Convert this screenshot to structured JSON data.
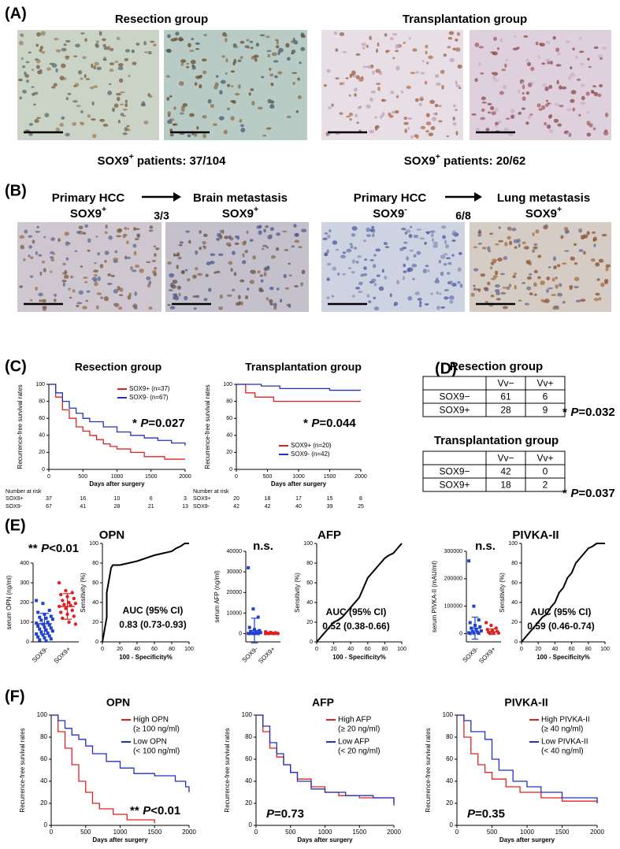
{
  "panel_labels": [
    "(A)",
    "(B)",
    "(C)",
    "(D)",
    "(E)",
    "(F)"
  ],
  "panel_A": {
    "groups": [
      {
        "title": "Resection group",
        "caption": {
          "pre": "SOX9",
          "sup": "+",
          "post": " patients: 37/104"
        }
      },
      {
        "title": "Transplantation group",
        "caption": {
          "pre": "SOX9",
          "sup": "+",
          "post": " patients: 20/62"
        }
      }
    ]
  },
  "panel_B": {
    "transitions": [
      {
        "from": {
          "name": "Primary HCC",
          "pre": "SOX9",
          "sup": "+"
        },
        "ratio": "3/3",
        "to": {
          "name": "Brain metastasis",
          "pre": "SOX9",
          "sup": "+"
        }
      },
      {
        "from": {
          "name": "Primary HCC",
          "pre": "SOX9",
          "sup": "-"
        },
        "ratio": "6/8",
        "to": {
          "name": "Lung metastasis",
          "pre": "SOX9",
          "sup": "+"
        }
      }
    ]
  },
  "tables": [
    {
      "title": "Resection group",
      "header": [
        "Vv−",
        "Vv+"
      ],
      "rows": [
        [
          "SOX9−",
          61,
          6
        ],
        [
          "SOX9+",
          28,
          9
        ]
      ],
      "annotation": {
        "stars": "*",
        "p": "P",
        "rest": "=0.032"
      }
    },
    {
      "title": "Transplantation group",
      "header": [
        "Vv−",
        "Vv+"
      ],
      "rows": [
        [
          "SOX9−",
          42,
          0
        ],
        [
          "SOX9+",
          18,
          2
        ]
      ],
      "annotation": {
        "stars": "*",
        "p": "P",
        "rest": "=0.037"
      }
    }
  ],
  "chart_data": [
    {
      "type": "survival",
      "title": "Resection group",
      "x_label": "Days after surgery",
      "y_label": "Recurrence-free survival rates",
      "xlim": [
        0,
        2000
      ],
      "xticks": [
        0,
        500,
        1000,
        1500,
        2000
      ],
      "ylim": [
        0,
        100
      ],
      "yticks": [
        0,
        20,
        40,
        60,
        80,
        100
      ],
      "legend": "upper right",
      "series": [
        {
          "name": "SOX9+ (n=37)",
          "color": "#e02020",
          "x": [
            0,
            100,
            200,
            300,
            400,
            500,
            600,
            700,
            800,
            900,
            1000,
            1200,
            1400,
            1700,
            2000
          ],
          "values": [
            100,
            85,
            70,
            60,
            50,
            45,
            40,
            35,
            30,
            27,
            24,
            20,
            15,
            12,
            12
          ]
        },
        {
          "name": "SOX9- (n=67)",
          "color": "#2030c0",
          "x": [
            0,
            100,
            200,
            300,
            400,
            500,
            600,
            800,
            1000,
            1200,
            1400,
            1600,
            1800,
            2000
          ],
          "values": [
            100,
            90,
            80,
            72,
            66,
            60,
            56,
            50,
            44,
            40,
            37,
            34,
            31,
            28
          ]
        }
      ],
      "annotation": {
        "stars": "*",
        "p": "P",
        "rest": "=0.027"
      },
      "risk_table": {
        "title": "Number at risk",
        "rows": [
          {
            "name": "SOX9+",
            "values": [
              37,
              16,
              10,
              6,
              3
            ]
          },
          {
            "name": "SOX9-",
            "values": [
              67,
              41,
              28,
              21,
              13
            ]
          }
        ]
      }
    },
    {
      "type": "survival",
      "title": "Transplantation group",
      "x_label": "Days after surgery",
      "y_label": "Recurrence-free survival rates",
      "xlim": [
        0,
        2000
      ],
      "xticks": [
        0,
        500,
        1000,
        1500,
        2000
      ],
      "ylim": [
        0,
        100
      ],
      "yticks": [
        0,
        20,
        40,
        60,
        80,
        100
      ],
      "legend": "lower right",
      "series": [
        {
          "name": "SOX9+ (n=20)",
          "color": "#e02020",
          "x": [
            0,
            150,
            300,
            600,
            2000
          ],
          "values": [
            100,
            90,
            85,
            80,
            80
          ]
        },
        {
          "name": "SOX9- (n=42)",
          "color": "#2030c0",
          "x": [
            0,
            400,
            700,
            1500,
            2000
          ],
          "values": [
            100,
            98,
            95,
            93,
            93
          ]
        }
      ],
      "annotation": {
        "stars": "*",
        "p": "P",
        "rest": "=0.044"
      },
      "risk_table": {
        "title": "Number at risk",
        "rows": [
          {
            "name": "SOX9+",
            "values": [
              20,
              18,
              17,
              15,
              8
            ]
          },
          {
            "name": "SOX9-",
            "values": [
              42,
              42,
              40,
              39,
              25
            ]
          }
        ]
      }
    },
    {
      "type": "dotplot",
      "title": "OPN",
      "y_label": "serum OPN (ng/ml)",
      "categories": [
        "SOX9-",
        "SOX9+"
      ],
      "ylim": [
        0,
        400
      ],
      "yticks": [
        0,
        100,
        200,
        300,
        400
      ],
      "groups": [
        {
          "color": "#2040d0",
          "marker": "square",
          "values": [
            210,
            195,
            160,
            150,
            140,
            130,
            125,
            120,
            115,
            110,
            100,
            95,
            90,
            85,
            80,
            75,
            70,
            65,
            60,
            55,
            50,
            45,
            40,
            35,
            30,
            25,
            20,
            15,
            10,
            5
          ],
          "mean": 92,
          "sd": 53
        },
        {
          "color": "#e02020",
          "marker": "circle",
          "values": [
            300,
            260,
            250,
            240,
            230,
            220,
            210,
            200,
            195,
            190,
            185,
            180,
            170,
            160,
            150,
            140,
            130,
            120,
            100,
            90
          ],
          "mean": 180,
          "sd": 65
        }
      ],
      "annotation": {
        "stars": "**",
        "p": "P",
        "rest": "<0.01"
      }
    },
    {
      "type": "roc",
      "x_label": "100 - Specificity%",
      "y_label": "Sensitivity (%)",
      "xlim": [
        0,
        100
      ],
      "xticks": [
        0,
        20,
        40,
        60,
        80,
        100
      ],
      "ylim": [
        0,
        100
      ],
      "yticks": [
        0,
        20,
        40,
        60,
        80,
        100
      ],
      "x": [
        0,
        2,
        5,
        5,
        10,
        12,
        20,
        30,
        40,
        50,
        60,
        70,
        80,
        85,
        90,
        95,
        100
      ],
      "values": [
        0,
        10,
        25,
        50,
        75,
        78,
        78,
        80,
        82,
        85,
        88,
        90,
        92,
        95,
        97,
        100,
        100
      ],
      "auc_label": "AUC (95% CI)",
      "auc": "0.83 (0.73-0.93)"
    },
    {
      "type": "dotplot",
      "title": "AFP",
      "y_label": "serum AFP (ng/ml)",
      "categories": [
        "SOX9-",
        "SOX9+"
      ],
      "ylim": [
        -4000,
        40000
      ],
      "yticks": [
        0,
        10000,
        20000,
        30000,
        40000
      ],
      "groups": [
        {
          "color": "#2040d0",
          "marker": "square",
          "values": [
            32000,
            12000,
            8000,
            3000,
            2000,
            1500,
            1000,
            800,
            500,
            300,
            200,
            100,
            50,
            20,
            10,
            5
          ],
          "mean": 1500,
          "sd": 6000
        },
        {
          "color": "#e02020",
          "marker": "circle",
          "values": [
            900,
            600,
            400,
            300,
            200,
            150,
            100,
            80,
            50,
            30,
            20,
            10
          ],
          "mean": 300,
          "sd": 300
        }
      ],
      "annotation": {
        "text": "n.s."
      }
    },
    {
      "type": "roc",
      "x_label": "100 - Specificity%",
      "y_label": "Sensitivity (%)",
      "xlim": [
        0,
        100
      ],
      "xticks": [
        0,
        20,
        40,
        60,
        80,
        100
      ],
      "ylim": [
        0,
        100
      ],
      "yticks": [
        0,
        20,
        40,
        60,
        80,
        100
      ],
      "x": [
        0,
        5,
        10,
        15,
        20,
        25,
        30,
        35,
        40,
        45,
        50,
        55,
        60,
        65,
        70,
        75,
        80,
        85,
        90,
        95,
        100
      ],
      "values": [
        0,
        5,
        10,
        15,
        20,
        22,
        25,
        30,
        35,
        40,
        45,
        55,
        65,
        70,
        75,
        80,
        85,
        88,
        90,
        95,
        100
      ],
      "auc_label": "AUC (95% CI)",
      "auc": "0.52 (0.38-0.66)"
    },
    {
      "type": "dotplot",
      "title": "PIVKA-II",
      "y_label": "serum PIVKA-II (mAU/ml)",
      "categories": [
        "SOX9-",
        "SOX9+"
      ],
      "ylim": [
        -30000,
        300000
      ],
      "yticks": [
        0,
        100000,
        200000,
        300000
      ],
      "groups": [
        {
          "color": "#2040d0",
          "marker": "square",
          "values": [
            265000,
            100000,
            50000,
            40000,
            30000,
            25000,
            20000,
            15000,
            10000,
            8000,
            5000,
            3000,
            2000,
            1000,
            500
          ],
          "mean": 20000,
          "sd": 40000
        },
        {
          "color": "#e02020",
          "marker": "circle",
          "values": [
            40000,
            30000,
            20000,
            15000,
            10000,
            8000,
            5000,
            3000,
            2000,
            1000
          ],
          "mean": 7000,
          "sd": 10000
        }
      ],
      "annotation": {
        "text": "n.s."
      }
    },
    {
      "type": "roc",
      "x_label": "100 - Specificity%",
      "y_label": "Sensitivity (%)",
      "xlim": [
        0,
        100
      ],
      "xticks": [
        0,
        20,
        40,
        60,
        80,
        100
      ],
      "ylim": [
        0,
        100
      ],
      "yticks": [
        0,
        20,
        40,
        60,
        80,
        100
      ],
      "x": [
        0,
        5,
        10,
        15,
        20,
        25,
        30,
        35,
        40,
        45,
        50,
        55,
        60,
        65,
        70,
        75,
        80,
        85,
        90,
        95,
        100
      ],
      "values": [
        0,
        5,
        10,
        15,
        20,
        25,
        28,
        35,
        40,
        50,
        55,
        65,
        70,
        80,
        85,
        90,
        95,
        97,
        100,
        100,
        100
      ],
      "auc_label": "AUC (95% CI)",
      "auc": "0.59 (0.46-0.74)"
    },
    {
      "type": "survival",
      "title": "OPN",
      "x_label": "Days after surgery",
      "y_label": "Recurrence-free survival rates",
      "xlim": [
        0,
        2000
      ],
      "xticks": [
        0,
        500,
        1000,
        1500,
        2000
      ],
      "ylim": [
        0,
        100
      ],
      "yticks": [
        0,
        20,
        40,
        60,
        80,
        100
      ],
      "legend": "upper right",
      "series": [
        {
          "name": "High OPN",
          "note": "(≥ 100 ng/ml)",
          "color": "#e02020",
          "x": [
            0,
            100,
            200,
            300,
            400,
            500,
            600,
            700,
            900,
            1100,
            1500
          ],
          "values": [
            100,
            85,
            70,
            55,
            40,
            30,
            20,
            15,
            10,
            5,
            2
          ]
        },
        {
          "name": "Low OPN",
          "note": "(< 100 ng/ml)",
          "color": "#2030c0",
          "x": [
            0,
            100,
            200,
            300,
            400,
            500,
            600,
            800,
            1000,
            1200,
            1500,
            1800,
            1950,
            2000
          ],
          "values": [
            100,
            95,
            88,
            82,
            78,
            72,
            65,
            58,
            52,
            47,
            45,
            40,
            35,
            30
          ]
        }
      ],
      "annotation": {
        "stars": "**",
        "p": "P",
        "rest": "<0.01"
      }
    },
    {
      "type": "survival",
      "title": "AFP",
      "x_label": "Days after surgery",
      "y_label": "Recurrence-free survival rates",
      "xlim": [
        0,
        2000
      ],
      "xticks": [
        0,
        500,
        1000,
        1500,
        2000
      ],
      "ylim": [
        0,
        100
      ],
      "yticks": [
        0,
        20,
        40,
        60,
        80,
        100
      ],
      "legend": "upper right",
      "series": [
        {
          "name": "High AFP",
          "note": "(≥ 20 ng/ml)",
          "color": "#e02020",
          "x": [
            0,
            100,
            200,
            300,
            400,
            500,
            600,
            800,
            1000,
            1200,
            1500,
            2000
          ],
          "values": [
            100,
            85,
            70,
            62,
            55,
            48,
            42,
            35,
            30,
            27,
            25,
            20
          ]
        },
        {
          "name": "Low AFP",
          "note": "(< 20 ng/ml)",
          "color": "#2030c0",
          "x": [
            0,
            100,
            200,
            300,
            400,
            500,
            600,
            800,
            1000,
            1300,
            1700,
            2000
          ],
          "values": [
            100,
            90,
            75,
            65,
            55,
            48,
            40,
            33,
            30,
            27,
            25,
            18
          ]
        }
      ],
      "annotation": {
        "p": "P",
        "rest": "=0.73"
      }
    },
    {
      "type": "survival",
      "title": "PIVKA-II",
      "x_label": "Days after surgery",
      "y_label": "Recurrence-free survival rates",
      "xlim": [
        0,
        2000
      ],
      "xticks": [
        0,
        500,
        1000,
        1500,
        2000
      ],
      "ylim": [
        0,
        100
      ],
      "yticks": [
        0,
        20,
        40,
        60,
        80,
        100
      ],
      "legend": "upper right",
      "series": [
        {
          "name": "High PIVKA-II",
          "note": "(≥ 40 ng/ml)",
          "color": "#e02020",
          "x": [
            0,
            100,
            200,
            300,
            400,
            500,
            700,
            900,
            1200,
            1500,
            2000
          ],
          "values": [
            100,
            80,
            65,
            55,
            48,
            42,
            35,
            30,
            25,
            22,
            20
          ]
        },
        {
          "name": "Low PIVKA-II",
          "note": "(< 40 ng/ml)",
          "color": "#2030c0",
          "x": [
            0,
            100,
            200,
            400,
            500,
            600,
            800,
            1000,
            1200,
            1500,
            2000
          ],
          "values": [
            100,
            95,
            85,
            78,
            60,
            50,
            40,
            35,
            30,
            25,
            20
          ]
        }
      ],
      "annotation": {
        "p": "P",
        "rest": "=0.35"
      }
    }
  ]
}
